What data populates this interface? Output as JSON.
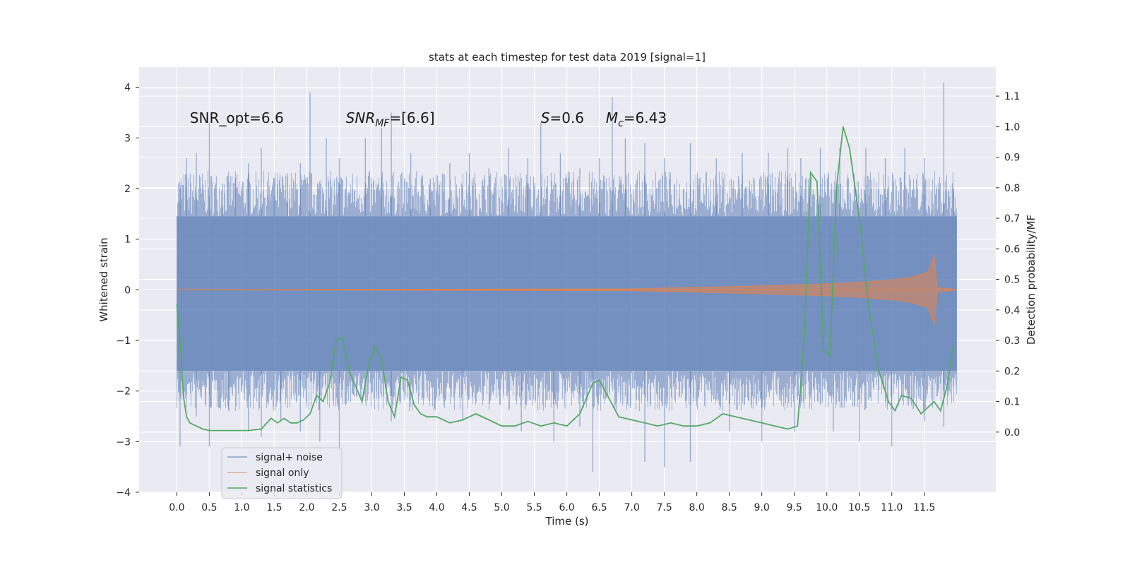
{
  "chart_data": {
    "type": "line",
    "title": "stats at each timestep for test data 2019 [signal=1]",
    "xlabel": "Time (s)",
    "ylabel_left": "Whitened strain",
    "ylabel_right": "Detection probability/MF",
    "xlim": [
      -0.58,
      12.6
    ],
    "ylim_left": [
      -4.0,
      4.4
    ],
    "ylim_right": [
      -0.197,
      1.195
    ],
    "x_ticks": [
      0.0,
      0.5,
      1.0,
      1.5,
      2.0,
      2.5,
      3.0,
      3.5,
      4.0,
      4.5,
      5.0,
      5.5,
      6.0,
      6.5,
      7.0,
      7.5,
      8.0,
      8.5,
      9.0,
      9.5,
      10.0,
      10.5,
      11.0,
      11.5
    ],
    "x_tick_labels": [
      "0.0",
      "0.5",
      "1.0",
      "1.5",
      "2.0",
      "2.5",
      "3.0",
      "3.5",
      "4.0",
      "4.5",
      "5.0",
      "5.5",
      "6.0",
      "6.5",
      "7.0",
      "7.5",
      "8.0",
      "8.5",
      "9.0",
      "9.5",
      "10.0",
      "10.5",
      "11.0",
      "11.5"
    ],
    "y_ticks_left": [
      4,
      3,
      2,
      1,
      0,
      -1,
      -2,
      -3,
      -4
    ],
    "y_tick_labels_left": [
      "4",
      "3",
      "2",
      "1",
      "0",
      "−1",
      "−2",
      "−3",
      "−4"
    ],
    "y_ticks_right": [
      1.1,
      1.0,
      0.9,
      0.8,
      0.7,
      0.6,
      0.5,
      0.4,
      0.3,
      0.2,
      0.1,
      0.0
    ],
    "y_tick_labels_right": [
      "1.1",
      "1.0",
      "0.9",
      "0.8",
      "0.7",
      "0.6",
      "0.5",
      "0.4",
      "0.3",
      "0.2",
      "0.1",
      "0.0"
    ],
    "grid": true,
    "legend_position": "lower-left",
    "annotations": [
      {
        "label": "SNR_opt=6.6",
        "x": 0.2,
        "y": 3.3
      },
      {
        "label": "SNR_MF=[6.6]",
        "x": 2.6,
        "y": 3.3
      },
      {
        "label": "S=0.6",
        "x": 5.6,
        "y": 3.3
      },
      {
        "label": "M_c=6.43",
        "x": 6.6,
        "y": 3.3
      }
    ],
    "series": [
      {
        "name": "signal+ noise",
        "color": "#4c72b0",
        "axis": "left",
        "x_range": [
          0.0,
          12.0
        ],
        "band_low": -1.6,
        "band_high": 1.45,
        "peaks": [
          {
            "x": 0.05,
            "y": 2.0
          },
          {
            "x": 0.15,
            "y": 2.6
          },
          {
            "x": 0.3,
            "y": 2.7
          },
          {
            "x": 0.5,
            "y": 3.3
          },
          {
            "x": 0.7,
            "y": 2.1
          },
          {
            "x": 0.9,
            "y": 2.2
          },
          {
            "x": 1.1,
            "y": 2.5
          },
          {
            "x": 1.3,
            "y": 2.8
          },
          {
            "x": 1.5,
            "y": 2.2
          },
          {
            "x": 1.7,
            "y": 2.3
          },
          {
            "x": 1.9,
            "y": 2.5
          },
          {
            "x": 2.05,
            "y": 3.9
          },
          {
            "x": 2.3,
            "y": 3.0
          },
          {
            "x": 2.5,
            "y": 2.6
          },
          {
            "x": 2.9,
            "y": 3.0
          },
          {
            "x": 3.15,
            "y": 3.2
          },
          {
            "x": 3.3,
            "y": 3.5
          },
          {
            "x": 3.6,
            "y": 2.7
          },
          {
            "x": 3.9,
            "y": 2.2
          },
          {
            "x": 4.2,
            "y": 2.5
          },
          {
            "x": 4.5,
            "y": 2.7
          },
          {
            "x": 4.8,
            "y": 2.4
          },
          {
            "x": 5.1,
            "y": 2.8
          },
          {
            "x": 5.4,
            "y": 2.6
          },
          {
            "x": 5.6,
            "y": 3.3
          },
          {
            "x": 5.9,
            "y": 2.7
          },
          {
            "x": 6.2,
            "y": 2.4
          },
          {
            "x": 6.5,
            "y": 2.6
          },
          {
            "x": 6.7,
            "y": 3.8
          },
          {
            "x": 6.9,
            "y": 3.0
          },
          {
            "x": 7.2,
            "y": 2.9
          },
          {
            "x": 7.5,
            "y": 2.6
          },
          {
            "x": 7.9,
            "y": 2.9
          },
          {
            "x": 8.3,
            "y": 2.6
          },
          {
            "x": 8.7,
            "y": 2.7
          },
          {
            "x": 9.1,
            "y": 2.7
          },
          {
            "x": 9.4,
            "y": 2.8
          },
          {
            "x": 9.6,
            "y": 2.6
          },
          {
            "x": 9.9,
            "y": 2.8
          },
          {
            "x": 10.2,
            "y": 2.8
          },
          {
            "x": 10.6,
            "y": 2.8
          },
          {
            "x": 10.9,
            "y": 2.6
          },
          {
            "x": 11.2,
            "y": 2.8
          },
          {
            "x": 11.5,
            "y": 2.6
          },
          {
            "x": 11.8,
            "y": 4.1
          },
          {
            "x": 11.95,
            "y": 2.0
          }
        ],
        "troughs": [
          {
            "x": 0.05,
            "y": -3.1
          },
          {
            "x": 0.3,
            "y": -2.5
          },
          {
            "x": 0.5,
            "y": -3.1
          },
          {
            "x": 0.8,
            "y": -2.4
          },
          {
            "x": 1.1,
            "y": -2.8
          },
          {
            "x": 1.3,
            "y": -2.9
          },
          {
            "x": 1.6,
            "y": -2.6
          },
          {
            "x": 1.9,
            "y": -2.8
          },
          {
            "x": 2.2,
            "y": -3.0
          },
          {
            "x": 2.5,
            "y": -3.4
          },
          {
            "x": 3.3,
            "y": -2.6
          },
          {
            "x": 4.4,
            "y": -2.6
          },
          {
            "x": 5.3,
            "y": -2.8
          },
          {
            "x": 5.8,
            "y": -3.0
          },
          {
            "x": 6.2,
            "y": -2.7
          },
          {
            "x": 6.4,
            "y": -3.6
          },
          {
            "x": 7.2,
            "y": -3.4
          },
          {
            "x": 7.5,
            "y": -3.5
          },
          {
            "x": 7.9,
            "y": -3.4
          },
          {
            "x": 8.5,
            "y": -2.8
          },
          {
            "x": 9.0,
            "y": -3.0
          },
          {
            "x": 9.5,
            "y": -2.8
          },
          {
            "x": 10.1,
            "y": -2.8
          },
          {
            "x": 10.5,
            "y": -3.0
          },
          {
            "x": 11.0,
            "y": -3.1
          },
          {
            "x": 11.5,
            "y": -2.6
          },
          {
            "x": 11.8,
            "y": -2.7
          }
        ]
      },
      {
        "name": "signal only",
        "color": "#dd8452",
        "axis": "left",
        "x": [
          0.0,
          7.0,
          8.0,
          9.0,
          10.0,
          10.5,
          11.0,
          11.3,
          11.55,
          11.62,
          11.65,
          11.7,
          12.0
        ],
        "amplitude": [
          0.0,
          0.02,
          0.05,
          0.08,
          0.12,
          0.15,
          0.2,
          0.25,
          0.35,
          0.55,
          0.7,
          0.05,
          0.0
        ]
      },
      {
        "name": "signal statistics",
        "color": "#55a868",
        "axis": "right",
        "x": [
          0.0,
          0.05,
          0.1,
          0.15,
          0.2,
          0.3,
          0.4,
          0.5,
          0.7,
          0.9,
          1.1,
          1.3,
          1.45,
          1.55,
          1.65,
          1.75,
          1.85,
          1.95,
          2.05,
          2.15,
          2.25,
          2.35,
          2.45,
          2.55,
          2.65,
          2.75,
          2.85,
          2.95,
          3.05,
          3.15,
          3.25,
          3.35,
          3.45,
          3.55,
          3.65,
          3.75,
          3.85,
          4.0,
          4.2,
          4.4,
          4.6,
          4.8,
          5.0,
          5.2,
          5.4,
          5.6,
          5.8,
          6.0,
          6.2,
          6.4,
          6.5,
          6.6,
          6.8,
          7.0,
          7.2,
          7.4,
          7.6,
          7.8,
          8.0,
          8.2,
          8.4,
          8.6,
          8.8,
          9.0,
          9.2,
          9.4,
          9.55,
          9.65,
          9.75,
          9.85,
          9.95,
          10.05,
          10.15,
          10.25,
          10.35,
          10.5,
          10.65,
          10.8,
          10.95,
          11.05,
          11.15,
          11.3,
          11.45,
          11.55,
          11.65,
          11.75,
          11.85,
          11.95
        ],
        "y": [
          0.42,
          0.3,
          0.12,
          0.05,
          0.03,
          0.02,
          0.01,
          0.005,
          0.005,
          0.005,
          0.005,
          0.01,
          0.045,
          0.03,
          0.045,
          0.03,
          0.03,
          0.04,
          0.06,
          0.12,
          0.1,
          0.16,
          0.3,
          0.31,
          0.2,
          0.15,
          0.1,
          0.22,
          0.28,
          0.24,
          0.1,
          0.05,
          0.18,
          0.17,
          0.09,
          0.06,
          0.05,
          0.05,
          0.03,
          0.04,
          0.06,
          0.04,
          0.02,
          0.02,
          0.035,
          0.02,
          0.03,
          0.02,
          0.06,
          0.16,
          0.17,
          0.13,
          0.05,
          0.04,
          0.03,
          0.02,
          0.03,
          0.02,
          0.02,
          0.03,
          0.06,
          0.05,
          0.04,
          0.03,
          0.02,
          0.01,
          0.02,
          0.3,
          0.85,
          0.82,
          0.27,
          0.25,
          0.8,
          1.0,
          0.93,
          0.7,
          0.4,
          0.2,
          0.1,
          0.07,
          0.12,
          0.11,
          0.06,
          0.08,
          0.1,
          0.07,
          0.15,
          0.29
        ]
      }
    ]
  }
}
